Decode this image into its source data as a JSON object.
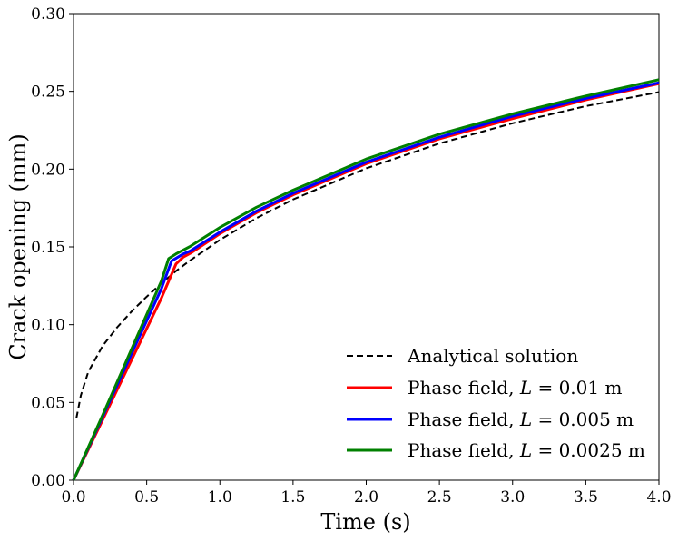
{
  "chart_data": {
    "type": "line",
    "title": "",
    "xlabel": "Time (s)",
    "ylabel": "Crack opening (mm)",
    "xlim": [
      0,
      4
    ],
    "ylim": [
      0,
      0.3
    ],
    "xticks": [
      0.0,
      0.5,
      1.0,
      1.5,
      2.0,
      2.5,
      3.0,
      3.5,
      4.0
    ],
    "xtick_labels": [
      "0.0",
      "0.5",
      "1.0",
      "1.5",
      "2.0",
      "2.5",
      "3.0",
      "3.5",
      "4.0"
    ],
    "yticks": [
      0.0,
      0.05,
      0.1,
      0.15,
      0.2,
      0.25,
      0.3
    ],
    "ytick_labels": [
      "0.00",
      "0.05",
      "0.10",
      "0.15",
      "0.20",
      "0.25",
      "0.30"
    ],
    "grid": false,
    "legend_position": "lower-right",
    "series": [
      {
        "name": "Analytical solution",
        "color": "#000000",
        "dash": "dashed",
        "x": [
          0.02,
          0.05,
          0.1,
          0.2,
          0.3,
          0.4,
          0.5,
          0.6,
          0.7,
          0.8,
          1.0,
          1.25,
          1.5,
          2.0,
          2.5,
          3.0,
          3.5,
          4.0
        ],
        "y": [
          0.04,
          0.0545,
          0.0695,
          0.0865,
          0.0985,
          0.1088,
          0.118,
          0.1265,
          0.1345,
          0.1415,
          0.1545,
          0.1685,
          0.1805,
          0.2005,
          0.2165,
          0.2295,
          0.2405,
          0.2495
        ]
      },
      {
        "name": "Phase field, L = 0.01 m",
        "color": "#ff0000",
        "dash": "solid",
        "x": [
          0.0,
          0.1,
          0.2,
          0.3,
          0.4,
          0.5,
          0.6,
          0.7,
          0.75,
          0.8,
          1.0,
          1.25,
          1.5,
          2.0,
          2.5,
          3.0,
          3.5,
          4.0
        ],
        "y": [
          0.0,
          0.0195,
          0.039,
          0.0585,
          0.078,
          0.0975,
          0.117,
          0.139,
          0.1435,
          0.146,
          0.1585,
          0.172,
          0.1835,
          0.2035,
          0.2195,
          0.2325,
          0.2445,
          0.255
        ]
      },
      {
        "name": "Phase field, L = 0.005 m",
        "color": "#0000ff",
        "dash": "solid",
        "x": [
          0.0,
          0.1,
          0.2,
          0.3,
          0.4,
          0.5,
          0.6,
          0.67,
          0.75,
          0.8,
          1.0,
          1.25,
          1.5,
          2.0,
          2.5,
          3.0,
          3.5,
          4.0
        ],
        "y": [
          0.0,
          0.0205,
          0.041,
          0.0615,
          0.082,
          0.1025,
          0.123,
          0.141,
          0.1455,
          0.1475,
          0.1595,
          0.173,
          0.1845,
          0.2045,
          0.2205,
          0.234,
          0.2455,
          0.2555
        ]
      },
      {
        "name": "Phase field, L = 0.0025 m",
        "color": "#008000",
        "dash": "solid",
        "x": [
          0.0,
          0.1,
          0.2,
          0.3,
          0.4,
          0.5,
          0.6,
          0.65,
          0.7,
          0.8,
          1.0,
          1.25,
          1.5,
          2.0,
          2.5,
          3.0,
          3.5,
          4.0
        ],
        "y": [
          0.0,
          0.021,
          0.042,
          0.0635,
          0.085,
          0.1065,
          0.128,
          0.1425,
          0.1455,
          0.1505,
          0.1625,
          0.1755,
          0.1865,
          0.2065,
          0.2225,
          0.2355,
          0.247,
          0.2575
        ]
      }
    ],
    "legend_labels": [
      {
        "text": "Analytical solution",
        "italic_part": "",
        "suffix": ""
      },
      {
        "text": "Phase field, ",
        "italic_part": "L",
        "suffix": " = 0.01 m"
      },
      {
        "text": "Phase field, ",
        "italic_part": "L",
        "suffix": " = 0.005 m"
      },
      {
        "text": "Phase field, ",
        "italic_part": "L",
        "suffix": " = 0.0025 m"
      }
    ]
  }
}
